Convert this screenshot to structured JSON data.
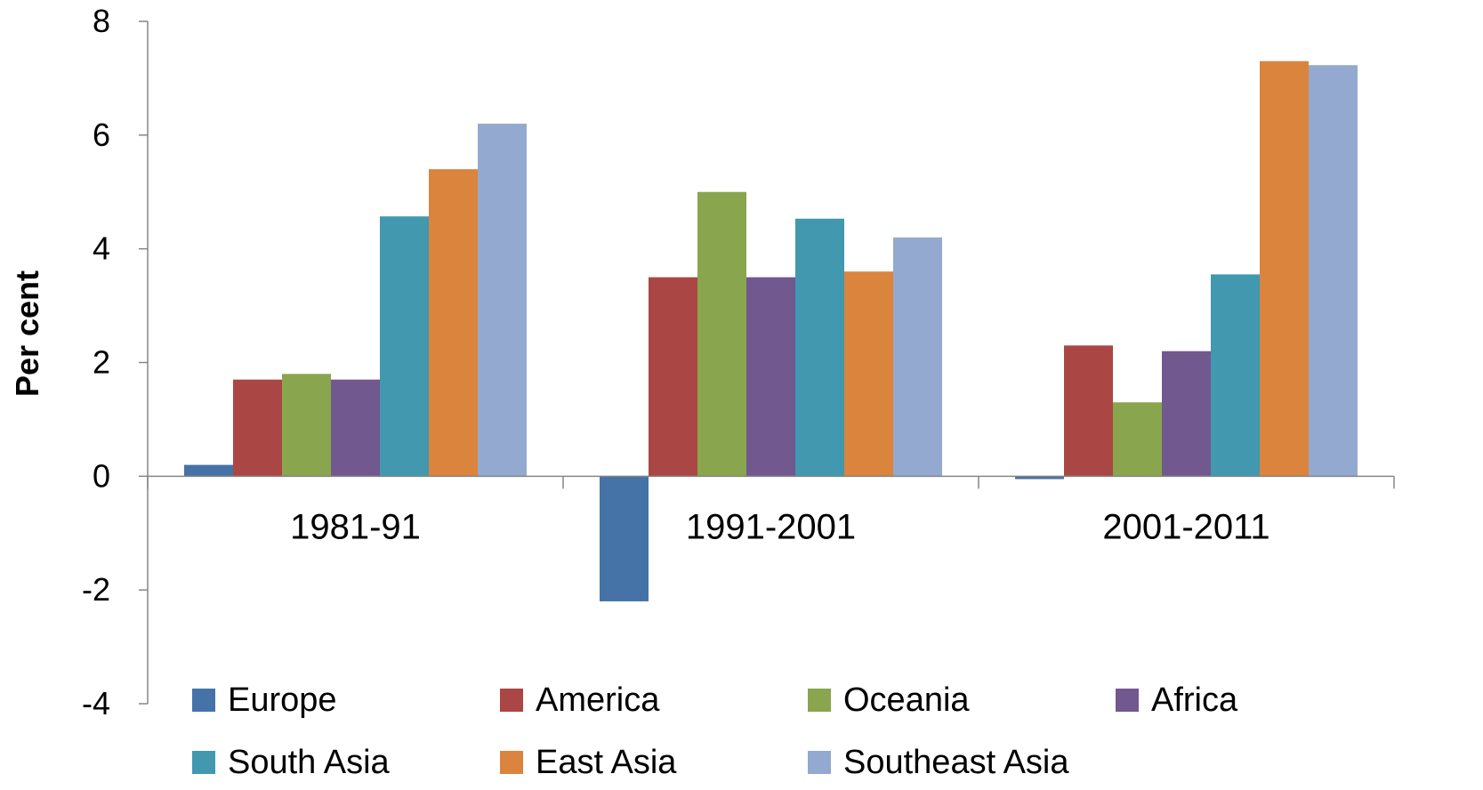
{
  "chart_data": {
    "type": "bar",
    "title": "",
    "xlabel": "",
    "ylabel": "Per cent",
    "ylim": [
      -4,
      8
    ],
    "yticks": [
      8,
      6,
      4,
      2,
      0,
      -2,
      -4
    ],
    "grid": false,
    "legend_position": "bottom",
    "categories": [
      "1981-91",
      "1991-2001",
      "2001-2011"
    ],
    "series": [
      {
        "name": "Europe",
        "color": "#4572A7",
        "values": [
          0.2,
          -2.2,
          -0.05
        ]
      },
      {
        "name": "America",
        "color": "#AA4643",
        "values": [
          1.7,
          3.5,
          2.3
        ]
      },
      {
        "name": "Oceania",
        "color": "#89A54E",
        "values": [
          1.8,
          5.0,
          1.3
        ]
      },
      {
        "name": "Africa",
        "color": "#71588F",
        "values": [
          1.7,
          3.5,
          2.2
        ]
      },
      {
        "name": "South Asia",
        "color": "#4198AF",
        "values": [
          4.57,
          4.53,
          3.55
        ]
      },
      {
        "name": "East Asia",
        "color": "#DB843D",
        "values": [
          5.4,
          3.6,
          7.3
        ]
      },
      {
        "name": "Southeast Asia",
        "color": "#93A9CF",
        "values": [
          6.2,
          4.2,
          7.23
        ]
      }
    ]
  }
}
